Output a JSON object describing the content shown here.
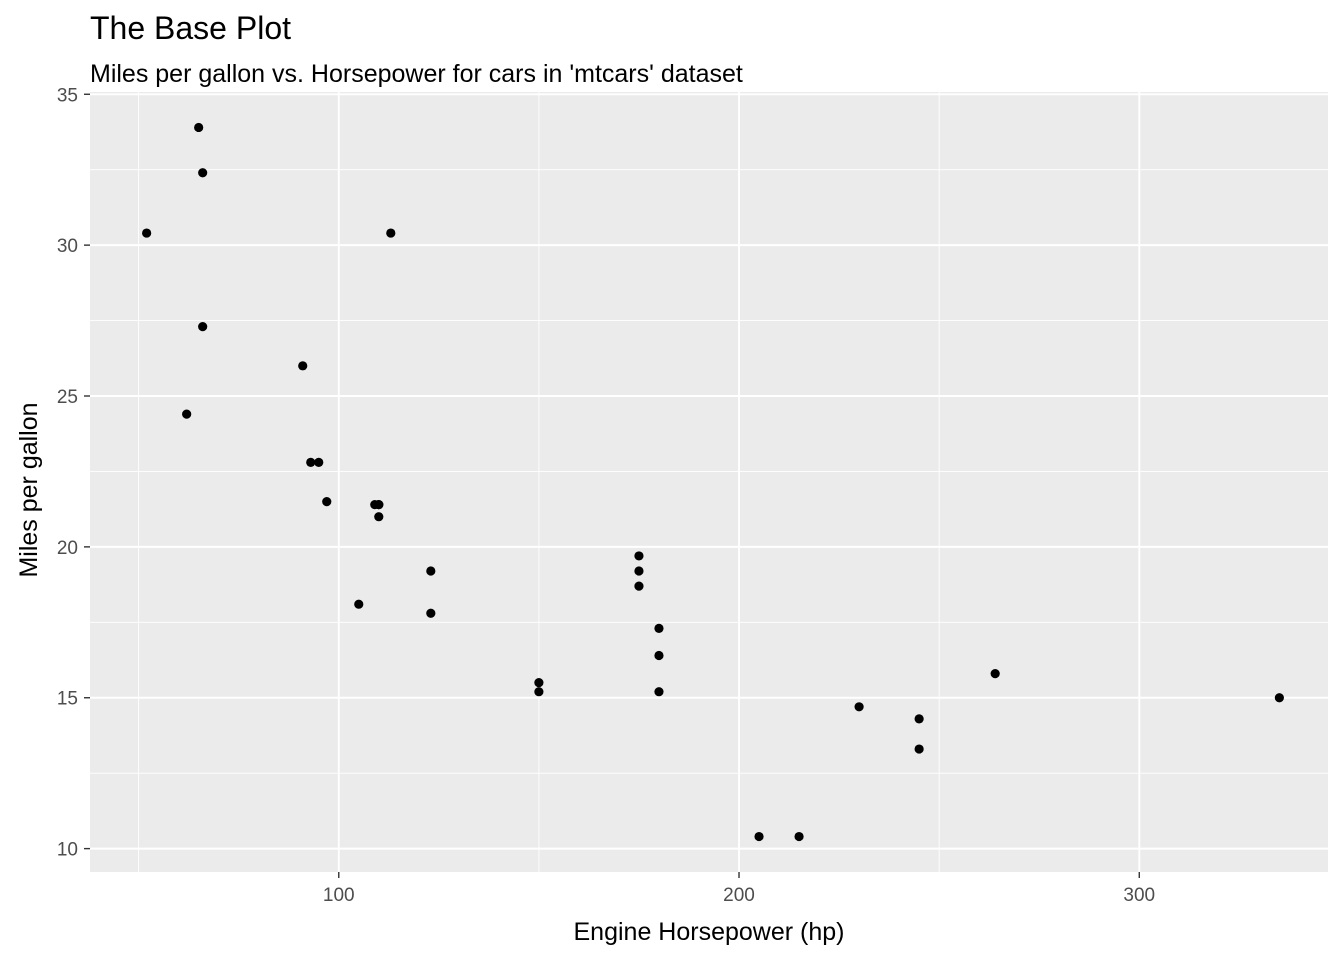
{
  "chart_data": {
    "type": "scatter",
    "title": "The Base Plot",
    "subtitle": "Miles per gallon vs. Horsepower for cars in 'mtcars' dataset",
    "xlabel": "Engine Horsepower (hp)",
    "ylabel": "Miles per gallon",
    "xlim": [
      37.85,
      347.15
    ],
    "ylim": [
      9.225,
      35.075
    ],
    "x_ticks": [
      100,
      200,
      300
    ],
    "y_ticks": [
      10,
      15,
      20,
      25,
      30,
      35
    ],
    "grid": true,
    "legend": "none",
    "colors": {
      "panel": "#ebebeb",
      "grid": "#ffffff",
      "point": "#000000",
      "tick_text": "#4d4d4d"
    },
    "points": [
      {
        "x": 110,
        "y": 21.0
      },
      {
        "x": 110,
        "y": 21.4
      },
      {
        "x": 93,
        "y": 22.8
      },
      {
        "x": 110,
        "y": 21.4
      },
      {
        "x": 175,
        "y": 18.7
      },
      {
        "x": 105,
        "y": 18.1
      },
      {
        "x": 245,
        "y": 14.3
      },
      {
        "x": 62,
        "y": 24.4
      },
      {
        "x": 95,
        "y": 22.8
      },
      {
        "x": 123,
        "y": 19.2
      },
      {
        "x": 123,
        "y": 17.8
      },
      {
        "x": 180,
        "y": 16.4
      },
      {
        "x": 180,
        "y": 17.3
      },
      {
        "x": 180,
        "y": 15.2
      },
      {
        "x": 205,
        "y": 10.4
      },
      {
        "x": 215,
        "y": 10.4
      },
      {
        "x": 230,
        "y": 14.7
      },
      {
        "x": 66,
        "y": 32.4
      },
      {
        "x": 52,
        "y": 30.4
      },
      {
        "x": 65,
        "y": 33.9
      },
      {
        "x": 97,
        "y": 21.5
      },
      {
        "x": 150,
        "y": 15.5
      },
      {
        "x": 150,
        "y": 15.2
      },
      {
        "x": 245,
        "y": 13.3
      },
      {
        "x": 175,
        "y": 19.2
      },
      {
        "x": 66,
        "y": 27.3
      },
      {
        "x": 91,
        "y": 26.0
      },
      {
        "x": 113,
        "y": 30.4
      },
      {
        "x": 264,
        "y": 15.8
      },
      {
        "x": 175,
        "y": 19.7
      },
      {
        "x": 335,
        "y": 15.0
      },
      {
        "x": 109,
        "y": 21.4
      }
    ]
  }
}
